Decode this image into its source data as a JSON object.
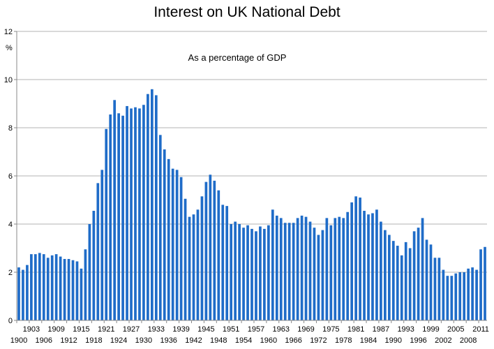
{
  "chart_data": {
    "type": "bar",
    "title": "Interest on UK National Debt",
    "ylabel": "%",
    "annotation": "As a percentage of GDP",
    "ylim": [
      0,
      12
    ],
    "yticks": [
      0,
      2,
      4,
      6,
      8,
      10,
      12
    ],
    "grid": true,
    "x_start": 1900,
    "x_end": 2012,
    "x_tick_labels_row1": [
      "1903",
      "1909",
      "1915",
      "1921",
      "1927",
      "1933",
      "1939",
      "1945",
      "1951",
      "1957",
      "1963",
      "1969",
      "1975",
      "1981",
      "1987",
      "1993",
      "1999",
      "2005",
      "2011"
    ],
    "x_tick_labels_row2": [
      "1900",
      "1906",
      "1912",
      "1918",
      "1924",
      "1930",
      "1936",
      "1942",
      "1948",
      "1954",
      "1960",
      "1966",
      "1972",
      "1978",
      "1984",
      "1990",
      "1996",
      "2002",
      "2008"
    ],
    "bar_color": "#1f6cc8",
    "series": [
      {
        "name": "",
        "x": [
          1900,
          1901,
          1902,
          1903,
          1904,
          1905,
          1906,
          1907,
          1908,
          1909,
          1910,
          1911,
          1912,
          1913,
          1914,
          1915,
          1916,
          1917,
          1918,
          1919,
          1920,
          1921,
          1922,
          1923,
          1924,
          1925,
          1926,
          1927,
          1928,
          1929,
          1930,
          1931,
          1932,
          1933,
          1934,
          1935,
          1936,
          1937,
          1938,
          1939,
          1940,
          1941,
          1942,
          1943,
          1944,
          1945,
          1946,
          1947,
          1948,
          1949,
          1950,
          1951,
          1952,
          1953,
          1954,
          1955,
          1956,
          1957,
          1958,
          1959,
          1960,
          1961,
          1962,
          1963,
          1964,
          1965,
          1966,
          1967,
          1968,
          1969,
          1970,
          1971,
          1972,
          1973,
          1974,
          1975,
          1976,
          1977,
          1978,
          1979,
          1980,
          1981,
          1982,
          1983,
          1984,
          1985,
          1986,
          1987,
          1988,
          1989,
          1990,
          1991,
          1992,
          1993,
          1994,
          1995,
          1996,
          1997,
          1998,
          1999,
          2000,
          2001,
          2002,
          2003,
          2004,
          2005,
          2006,
          2007,
          2008,
          2009,
          2010,
          2011,
          2012
        ],
        "values": [
          2.2,
          2.1,
          2.3,
          2.75,
          2.75,
          2.8,
          2.75,
          2.6,
          2.7,
          2.75,
          2.65,
          2.55,
          2.55,
          2.5,
          2.45,
          2.15,
          2.95,
          4.0,
          4.55,
          5.7,
          6.25,
          7.95,
          8.55,
          9.15,
          8.6,
          8.5,
          8.9,
          8.8,
          8.85,
          8.8,
          8.95,
          9.4,
          9.6,
          9.35,
          7.7,
          7.1,
          6.7,
          6.3,
          6.25,
          5.95,
          5.05,
          4.3,
          4.4,
          4.6,
          5.15,
          5.75,
          6.05,
          5.8,
          5.4,
          4.8,
          4.75,
          4.0,
          4.1,
          4.0,
          3.85,
          3.95,
          3.8,
          3.7,
          3.9,
          3.8,
          3.95,
          4.6,
          4.35,
          4.25,
          4.05,
          4.05,
          4.05,
          4.25,
          4.35,
          4.3,
          4.1,
          3.85,
          3.55,
          3.75,
          4.25,
          3.95,
          4.25,
          4.3,
          4.25,
          4.5,
          4.9,
          5.15,
          5.1,
          4.55,
          4.4,
          4.45,
          4.6,
          4.1,
          3.75,
          3.55,
          3.3,
          3.1,
          2.7,
          3.25,
          3.0,
          3.7,
          3.85,
          4.25,
          3.35,
          3.15,
          2.6,
          2.6,
          2.1,
          1.85,
          1.85,
          1.95,
          2.0,
          2.0,
          2.15,
          2.2,
          2.1,
          2.95,
          3.05
        ]
      }
    ]
  }
}
